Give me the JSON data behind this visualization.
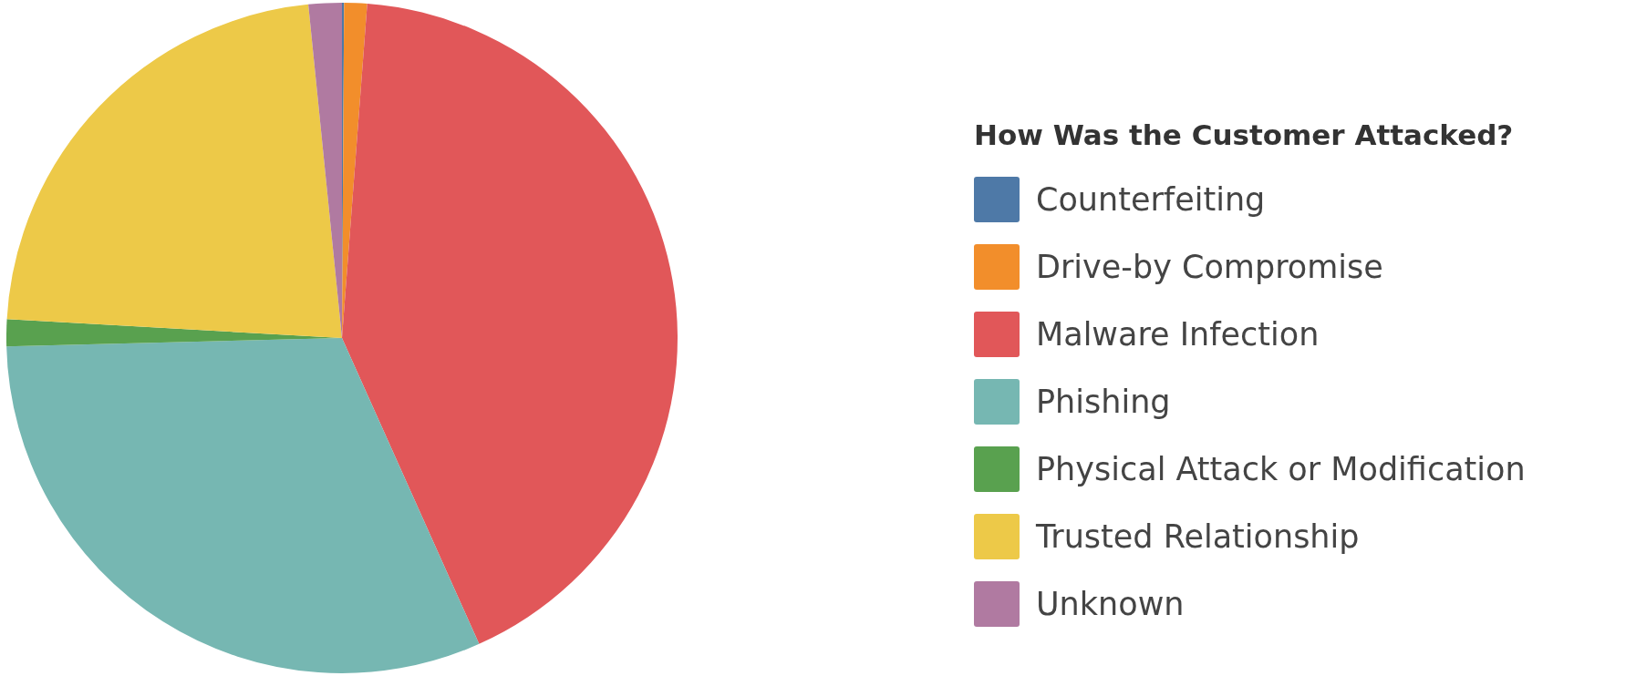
{
  "chart_data": {
    "type": "pie",
    "legend_title": "How Was the Customer Attacked?",
    "categories": [
      "Counterfeiting",
      "Drive-by Compromise",
      "Malware Infection",
      "Phishing",
      "Physical Attack or Modification",
      "Trusted Relationship",
      "Unknown"
    ],
    "values": [
      0.1,
      1.1,
      42.1,
      31.3,
      1.3,
      22.5,
      1.6
    ],
    "colors": [
      "#4e79a7",
      "#f28e2b",
      "#e15759",
      "#76b7b2",
      "#59a14f",
      "#edc948",
      "#b07aa1"
    ],
    "legend": "right"
  }
}
